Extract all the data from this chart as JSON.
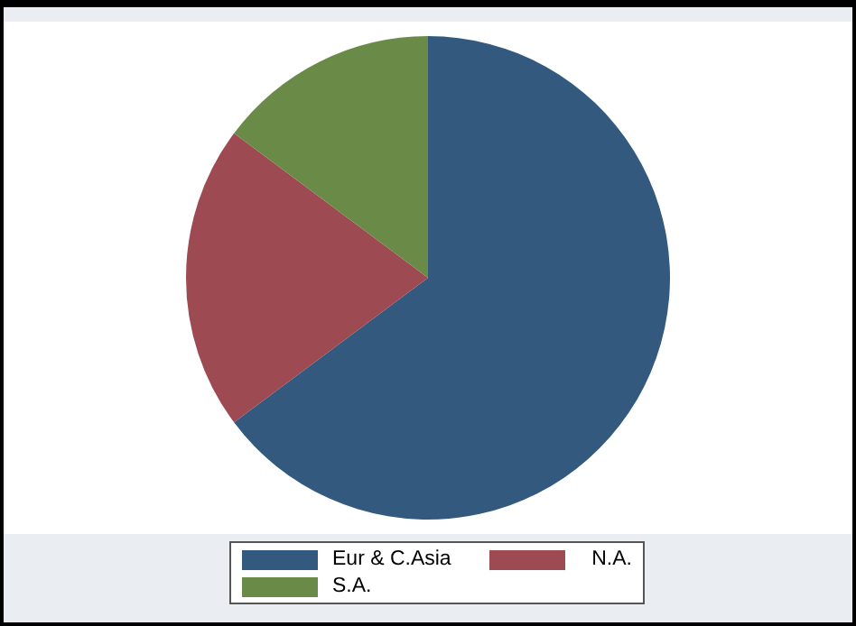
{
  "chart_data": {
    "type": "pie",
    "categories": [
      "Eur & C.Asia",
      "N.A.",
      "S.A."
    ],
    "values": [
      64.8,
      20.4,
      14.8
    ],
    "colors": [
      "#335a7e",
      "#9d4a52",
      "#6a8a48"
    ],
    "legend": "bottom"
  }
}
